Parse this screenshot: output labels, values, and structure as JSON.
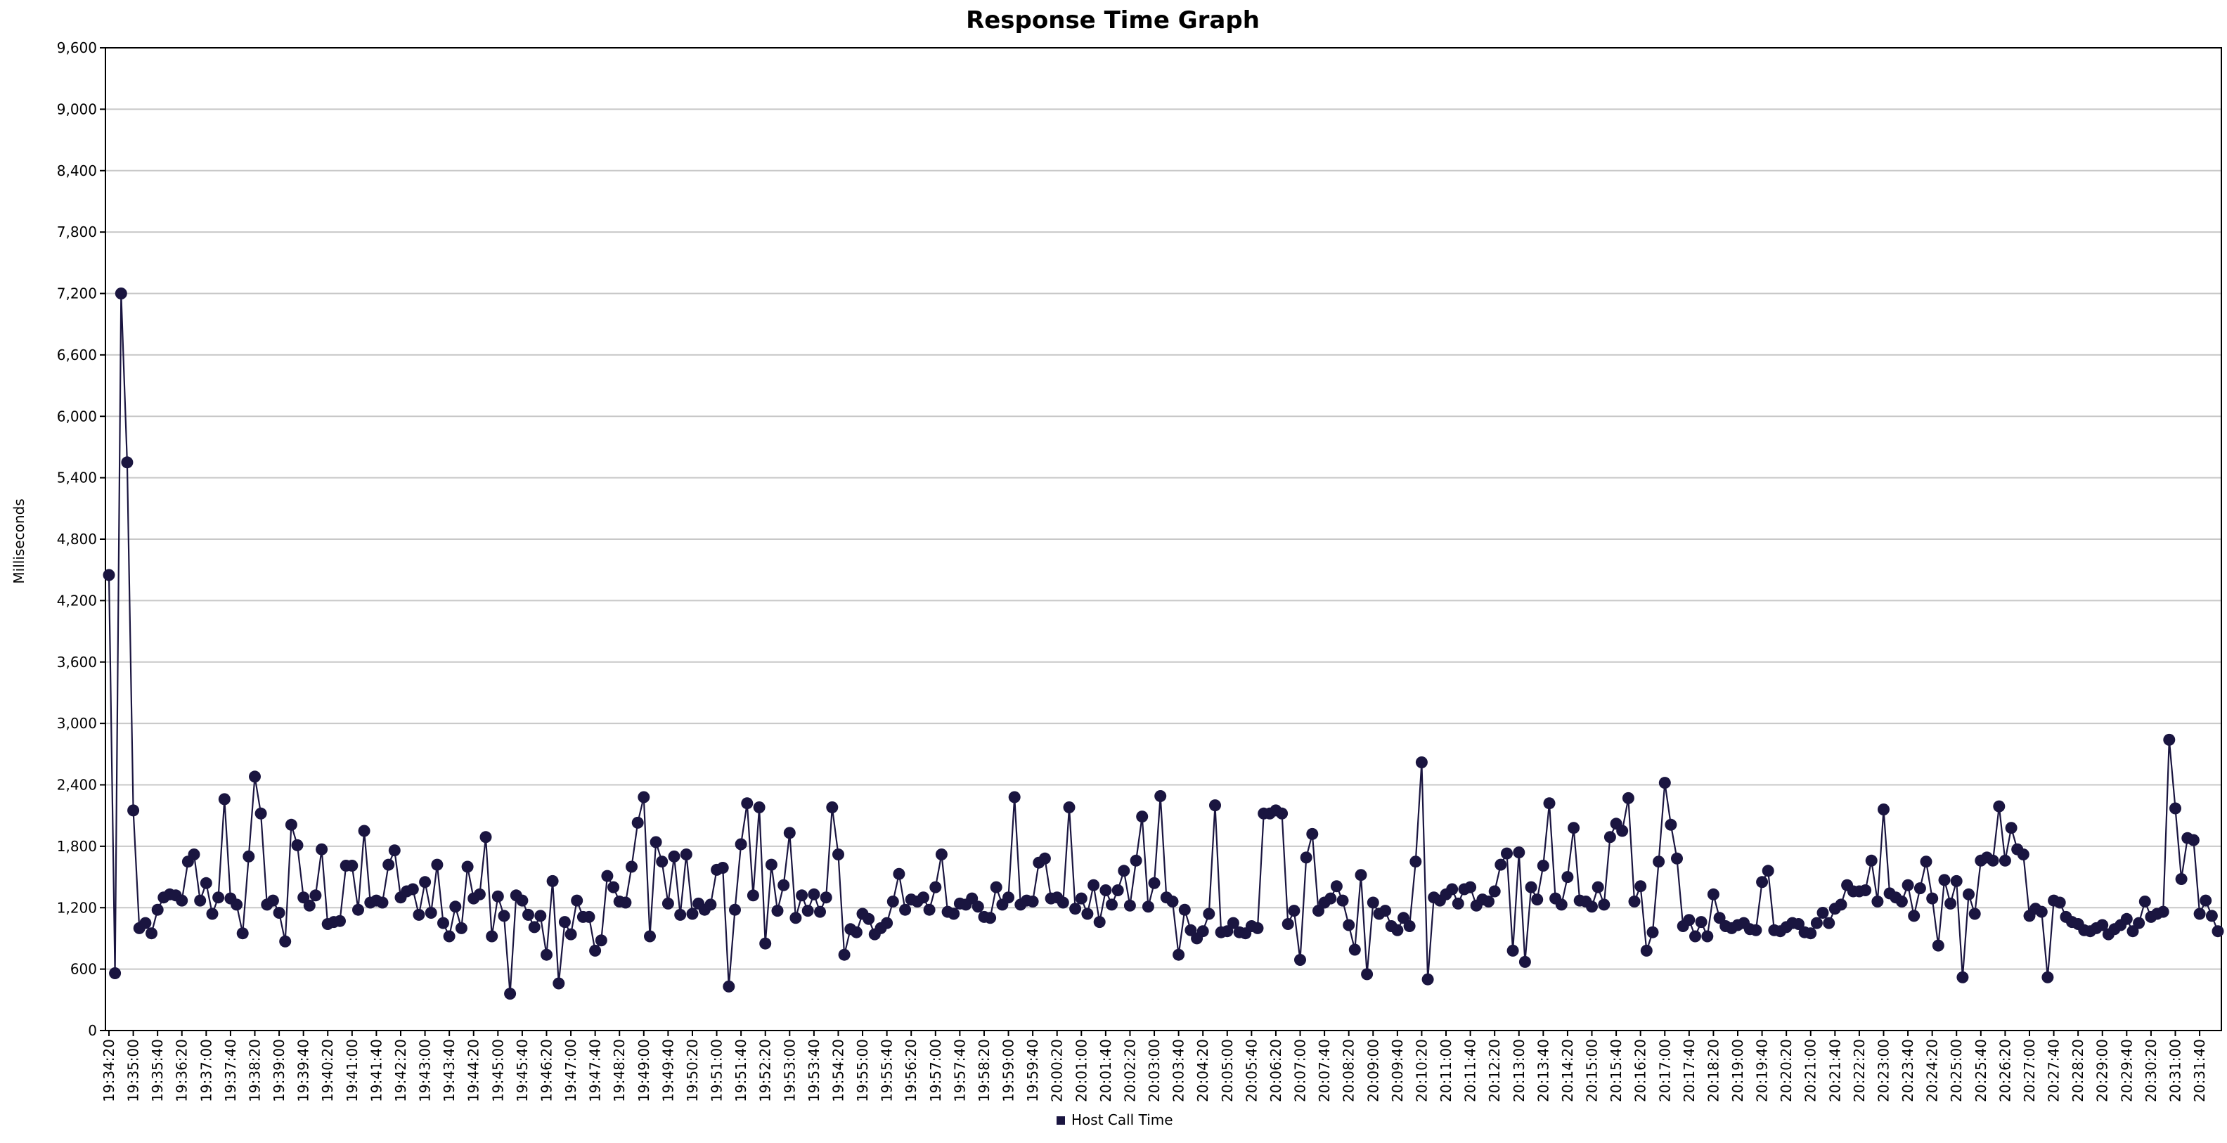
{
  "chart_data": {
    "type": "line",
    "title": "Response Time Graph",
    "xlabel": "",
    "ylabel": "Milliseconds",
    "ylim": [
      0,
      9600
    ],
    "yticks": [
      "0",
      "600",
      "1,200",
      "1,800",
      "2,400",
      "3,000",
      "3,600",
      "4,200",
      "4,800",
      "5,400",
      "6,000",
      "6,600",
      "7,200",
      "7,800",
      "8,400",
      "9,000",
      "9,600"
    ],
    "grid": "horizontal",
    "legend_position": "bottom",
    "xtick_labels": [
      "19:34:20",
      "19:35:00",
      "19:35:40",
      "19:36:20",
      "19:37:00",
      "19:37:40",
      "19:38:20",
      "19:39:00",
      "19:39:40",
      "19:40:20",
      "19:41:00",
      "19:41:40",
      "19:42:20",
      "19:43:00",
      "19:43:40",
      "19:44:20",
      "19:45:00",
      "19:45:40",
      "19:46:20",
      "19:47:00",
      "19:47:40",
      "19:48:20",
      "19:49:00",
      "19:49:40",
      "19:50:20",
      "19:51:00",
      "19:51:40",
      "19:52:20",
      "19:53:00",
      "19:53:40",
      "19:54:20",
      "19:55:00",
      "19:55:40",
      "19:56:20",
      "19:57:00",
      "19:57:40",
      "19:58:20",
      "19:59:00",
      "19:59:40",
      "20:00:20",
      "20:01:00",
      "20:01:40",
      "20:02:20",
      "20:03:00",
      "20:03:40",
      "20:04:20",
      "20:05:00",
      "20:05:40",
      "20:06:20",
      "20:07:00",
      "20:07:40",
      "20:08:20",
      "20:09:00",
      "20:09:40",
      "20:10:20",
      "20:11:00",
      "20:11:40",
      "20:12:20",
      "20:13:00",
      "20:13:40",
      "20:14:20",
      "20:15:00",
      "20:15:40",
      "20:16:20",
      "20:17:00",
      "20:17:40",
      "20:18:20",
      "20:19:00",
      "20:19:40",
      "20:20:20",
      "20:21:00",
      "20:21:40",
      "20:22:20",
      "20:23:00",
      "20:23:40",
      "20:24:20",
      "20:25:00",
      "20:25:40",
      "20:26:20",
      "20:27:00",
      "20:27:40",
      "20:28:20",
      "20:29:00",
      "20:29:40",
      "20:30:20",
      "20:31:00",
      "20:31:40"
    ],
    "x_start": "19:34:20",
    "x_interval_seconds": 10,
    "series": [
      {
        "name": "Host Call Time",
        "color": "#1a1540",
        "values": [
          4450,
          560,
          7200,
          5550,
          2150,
          1000,
          1050,
          950,
          1180,
          1300,
          1330,
          1320,
          1270,
          1650,
          1720,
          1270,
          1440,
          1140,
          1300,
          2260,
          1290,
          1230,
          950,
          1700,
          2480,
          2120,
          1230,
          1270,
          1150,
          870,
          2010,
          1810,
          1300,
          1220,
          1320,
          1770,
          1040,
          1060,
          1070,
          1610,
          1610,
          1180,
          1950,
          1250,
          1270,
          1250,
          1620,
          1760,
          1300,
          1360,
          1380,
          1130,
          1450,
          1150,
          1620,
          1050,
          920,
          1210,
          1000,
          1600,
          1290,
          1330,
          1890,
          920,
          1310,
          1120,
          360,
          1320,
          1270,
          1130,
          1010,
          1120,
          740,
          1460,
          460,
          1060,
          940,
          1270,
          1110,
          1110,
          780,
          880,
          1510,
          1400,
          1260,
          1250,
          1600,
          2030,
          2280,
          920,
          1840,
          1650,
          1240,
          1700,
          1130,
          1720,
          1140,
          1240,
          1180,
          1230,
          1570,
          1590,
          430,
          1180,
          1820,
          2220,
          1320,
          2180,
          850,
          1620,
          1170,
          1420,
          1930,
          1100,
          1320,
          1170,
          1330,
          1160,
          1300,
          2180,
          1720,
          740,
          990,
          960,
          1140,
          1090,
          940,
          1000,
          1050,
          1260,
          1530,
          1180,
          1280,
          1260,
          1300,
          1180,
          1400,
          1720,
          1160,
          1140,
          1240,
          1230,
          1290,
          1210,
          1110,
          1100,
          1400,
          1230,
          1300,
          2280,
          1230,
          1270,
          1260,
          1640,
          1680,
          1290,
          1300,
          1250,
          2180,
          1190,
          1290,
          1140,
          1420,
          1060,
          1370,
          1230,
          1370,
          1560,
          1220,
          1660,
          2090,
          1210,
          1440,
          2290,
          1300,
          1260,
          740,
          1180,
          980,
          900,
          970,
          1140,
          2200,
          960,
          970,
          1050,
          960,
          950,
          1020,
          1000,
          2120,
          2120,
          2150,
          2120,
          1040,
          1170,
          690,
          1690,
          1920,
          1170,
          1250,
          1290,
          1410,
          1270,
          1030,
          790,
          1520,
          550,
          1250,
          1140,
          1170,
          1020,
          980,
          1100,
          1020,
          1650,
          2620,
          500,
          1300,
          1270,
          1330,
          1380,
          1240,
          1380,
          1400,
          1220,
          1280,
          1260,
          1360,
          1620,
          1730,
          780,
          1740,
          670,
          1400,
          1280,
          1610,
          2220,
          1290,
          1230,
          1500,
          1980,
          1270,
          1260,
          1210,
          1400,
          1230,
          1890,
          2020,
          1950,
          2270,
          1260,
          1410,
          780,
          960,
          1650,
          2420,
          2010,
          1680,
          1020,
          1080,
          920,
          1060,
          920,
          1330,
          1100,
          1020,
          1000,
          1030,
          1050,
          990,
          980,
          1450,
          1560,
          980,
          970,
          1010,
          1050,
          1040,
          960,
          950,
          1050,
          1150,
          1050,
          1190,
          1230,
          1420,
          1360,
          1360,
          1370,
          1660,
          1260,
          2160,
          1340,
          1300,
          1260,
          1420,
          1120,
          1390,
          1650,
          1290,
          830,
          1470,
          1240,
          1460,
          520,
          1330,
          1140,
          1660,
          1690,
          1660,
          2190,
          1660,
          1980,
          1770,
          1720,
          1120,
          1190,
          1160,
          520,
          1270,
          1250,
          1110,
          1060,
          1040,
          980,
          970,
          1000,
          1030,
          940,
          990,
          1030,
          1090,
          970,
          1050,
          1260,
          1110,
          1140,
          1160,
          2840,
          2170,
          1480,
          1880,
          1860,
          1140,
          1270,
          1120,
          970
        ]
      }
    ]
  }
}
